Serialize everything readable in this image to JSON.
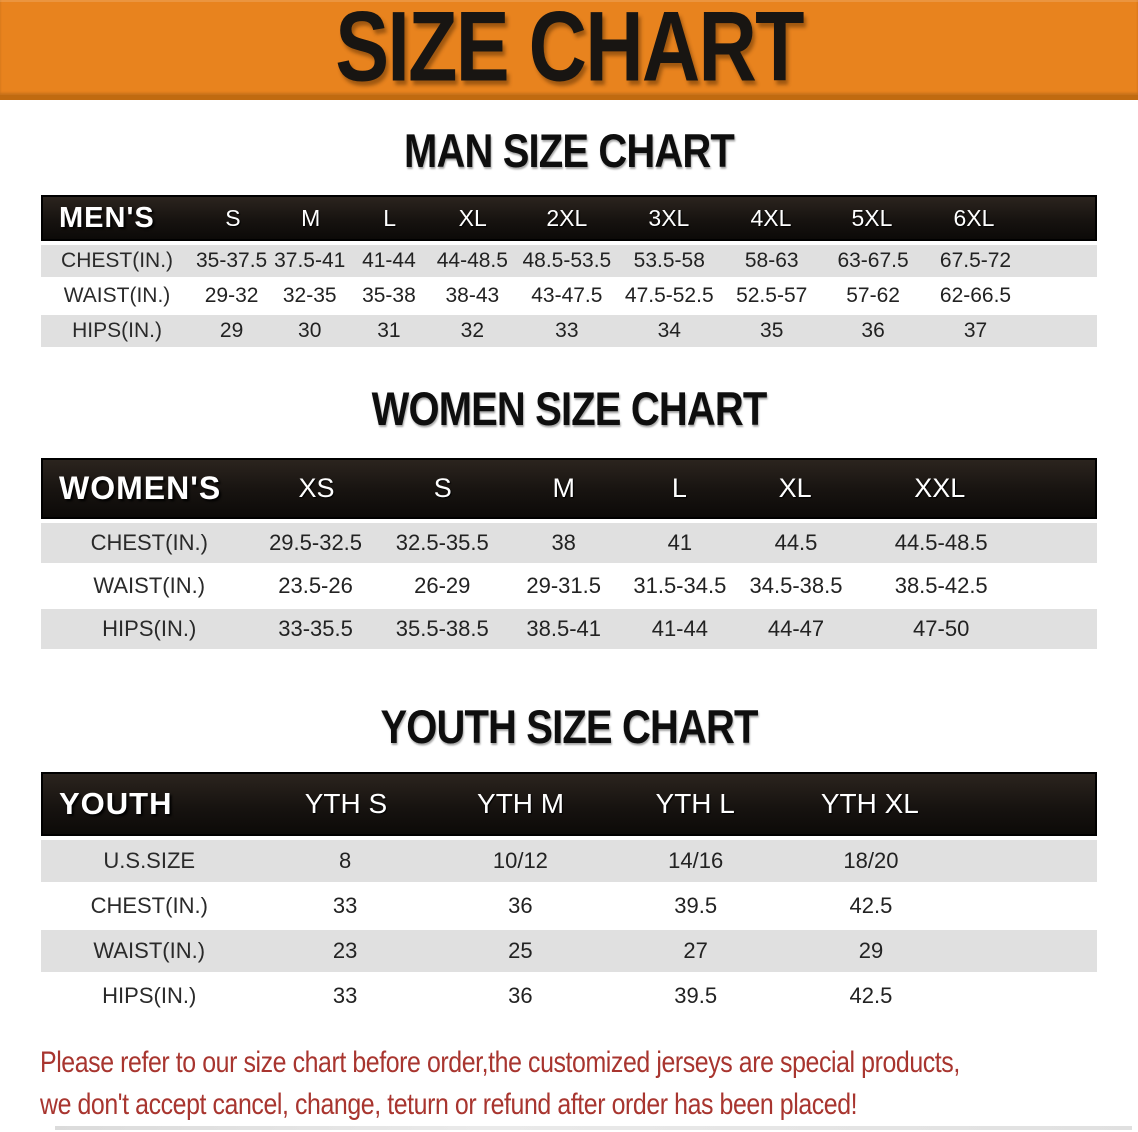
{
  "banner": {
    "title": "SIZE CHART"
  },
  "colors": {
    "banner_orange": "#E8831E",
    "banner_edge": "#C06A10",
    "header_black": "#171310",
    "row_gray": "#E0E0E0",
    "footer_red": "#A8352F"
  },
  "sections": [
    {
      "id": "mens",
      "title": "MAN SIZE CHART",
      "corner_label": "MEN'S",
      "columns": [
        "S",
        "M",
        "L",
        "XL",
        "2XL",
        "3XL",
        "4XL",
        "5XL",
        "6XL"
      ],
      "rows": [
        {
          "label": "CHEST(IN.)",
          "values": [
            "35-37.5",
            "37.5-41",
            "41-44",
            "44-48.5",
            "48.5-53.5",
            "53.5-58",
            "58-63",
            "63-67.5",
            "67.5-72"
          ]
        },
        {
          "label": "WAIST(IN.)",
          "values": [
            "29-32",
            "32-35",
            "35-38",
            "38-43",
            "43-47.5",
            "47.5-52.5",
            "52.5-57",
            "57-62",
            "62-66.5"
          ]
        },
        {
          "label": "HIPS(IN.)",
          "values": [
            "29",
            "30",
            "31",
            "32",
            "33",
            "34",
            "35",
            "36",
            "37"
          ]
        }
      ]
    },
    {
      "id": "womens",
      "title": "WOMEN SIZE CHART",
      "corner_label": "WOMEN'S",
      "columns": [
        "XS",
        "S",
        "M",
        "L",
        "XL",
        "XXL"
      ],
      "rows": [
        {
          "label": "CHEST(IN.)",
          "values": [
            "29.5-32.5",
            "32.5-35.5",
            "38",
            "41",
            "44.5",
            "44.5-48.5"
          ]
        },
        {
          "label": "WAIST(IN.)",
          "values": [
            "23.5-26",
            "26-29",
            "29-31.5",
            "31.5-34.5",
            "34.5-38.5",
            "38.5-42.5"
          ]
        },
        {
          "label": "HIPS(IN.)",
          "values": [
            "33-35.5",
            "35.5-38.5",
            "38.5-41",
            "41-44",
            "44-47",
            "47-50"
          ]
        }
      ]
    },
    {
      "id": "youth",
      "title": "YOUTH SIZE CHART",
      "corner_label": "YOUTH",
      "columns": [
        "YTH S",
        "YTH M",
        "YTH L",
        "YTH XL"
      ],
      "rows": [
        {
          "label": "U.S.SIZE",
          "values": [
            "8",
            "10/12",
            "14/16",
            "18/20"
          ]
        },
        {
          "label": "CHEST(IN.)",
          "values": [
            "33",
            "36",
            "39.5",
            "42.5"
          ]
        },
        {
          "label": "WAIST(IN.)",
          "values": [
            "23",
            "25",
            "27",
            "29"
          ]
        },
        {
          "label": "HIPS(IN.)",
          "values": [
            "33",
            "36",
            "39.5",
            "42.5"
          ]
        }
      ]
    }
  ],
  "footer": {
    "line1": "Please refer to our size chart before order,the customized jerseys are special products,",
    "line2": "we don't accept cancel, change, teturn or refund after order has been placed!"
  }
}
